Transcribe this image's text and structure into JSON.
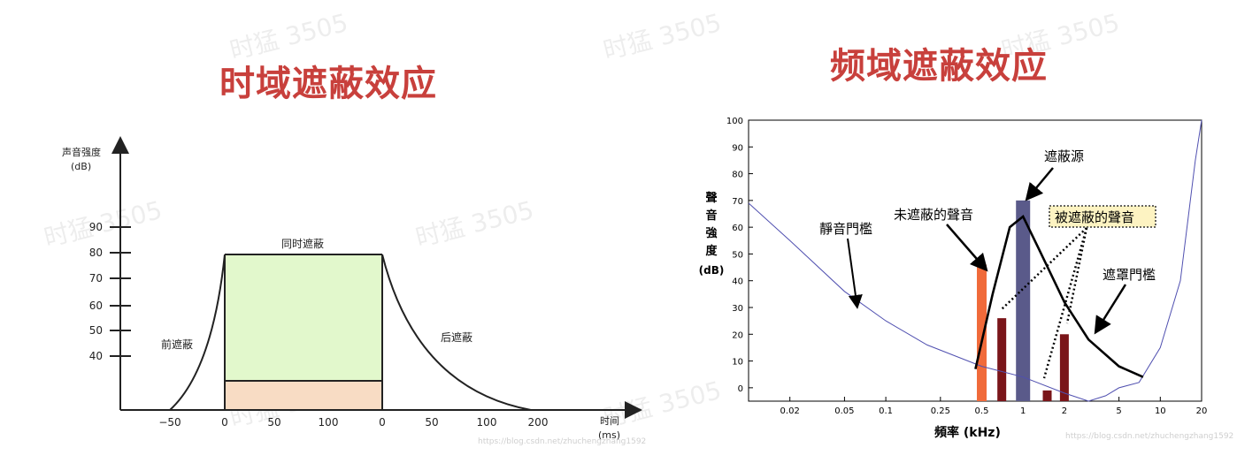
{
  "left_title": "时域遮蔽效应",
  "right_title": "频域遮蔽效应",
  "watermark": "时猛 3505",
  "time_chart": {
    "ylabel_line1": "声音强度",
    "ylabel_line2": "(dB)",
    "xlabel_line1": "时间",
    "xlabel_line2": "(ms)",
    "yticks": [
      "90",
      "80",
      "70",
      "60",
      "50",
      "40"
    ],
    "xticks": [
      "−50",
      "0",
      "50",
      "100",
      "0",
      "50",
      "100",
      "200"
    ],
    "label_pre": "前遮蔽",
    "label_simul": "同时遮蔽",
    "label_post": "后遮蔽",
    "url": "https://blog.csdn.net/zhuchengzhang1592"
  },
  "freq_chart": {
    "ylabel": [
      "聲",
      "音",
      "強",
      "度",
      "(dB)"
    ],
    "xlabel": "頻率 (kHz)",
    "yticks": [
      "100",
      "90",
      "80",
      "70",
      "60",
      "50",
      "40",
      "30",
      "20",
      "10",
      "0"
    ],
    "xticks": [
      "0.02",
      "0.05",
      "0.1",
      "0.25",
      "0.5",
      "1",
      "2",
      "5",
      "10",
      "20"
    ],
    "label_quiet": "靜音門檻",
    "label_unmasked": "未遮蔽的聲音",
    "label_masker": "遮蔽源",
    "label_masked": "被遮蔽的聲音",
    "label_masking": "遮罩門檻",
    "url": "https://blog.csdn.net/zhuchengzhang1592"
  },
  "chart_data": [
    {
      "type": "area",
      "xlabel": "时间 (ms)",
      "ylabel": "声音强度 (dB)",
      "y_ticks": [
        90,
        80,
        70,
        60,
        50,
        40
      ],
      "x_ticks": [
        "−50",
        "0",
        "50",
        "100",
        "0",
        "50",
        "100",
        "200"
      ],
      "regions": [
        "前遮蔽",
        "同时遮蔽",
        "后遮蔽"
      ],
      "simultaneous_level_db": 80
    },
    {
      "type": "bar",
      "xlabel": "頻率 (kHz)",
      "ylabel": "聲音強度 (dB)",
      "ylim": [
        -5,
        100
      ],
      "x_scale": "log",
      "bars": [
        {
          "freq_khz": 0.5,
          "db": 46,
          "color": "#f06a3a",
          "label": "未遮蔽的聲音"
        },
        {
          "freq_khz": 0.7,
          "db": 26,
          "color": "#7a1519"
        },
        {
          "freq_khz": 1.0,
          "db": 70,
          "color": "#5a5a8a",
          "label": "遮蔽源"
        },
        {
          "freq_khz": 1.5,
          "db": -1,
          "color": "#7a1519"
        },
        {
          "freq_khz": 2.0,
          "db": 20,
          "color": "#7a1519"
        }
      ],
      "quiet_threshold": [
        [
          0.01,
          69
        ],
        [
          0.02,
          55
        ],
        [
          0.05,
          36
        ],
        [
          0.1,
          25
        ],
        [
          0.2,
          16
        ],
        [
          0.5,
          8
        ],
        [
          1,
          4
        ],
        [
          2,
          -2
        ],
        [
          3,
          -5
        ],
        [
          4,
          -3
        ],
        [
          5,
          0
        ],
        [
          7,
          2
        ],
        [
          10,
          15
        ],
        [
          14,
          40
        ],
        [
          18,
          85
        ],
        [
          20,
          100
        ]
      ],
      "masking_threshold": [
        [
          0.45,
          7
        ],
        [
          0.6,
          35
        ],
        [
          0.8,
          60
        ],
        [
          1,
          64
        ],
        [
          1.3,
          52
        ],
        [
          2,
          32
        ],
        [
          3,
          18
        ],
        [
          5,
          8
        ],
        [
          7.5,
          4
        ]
      ]
    }
  ]
}
